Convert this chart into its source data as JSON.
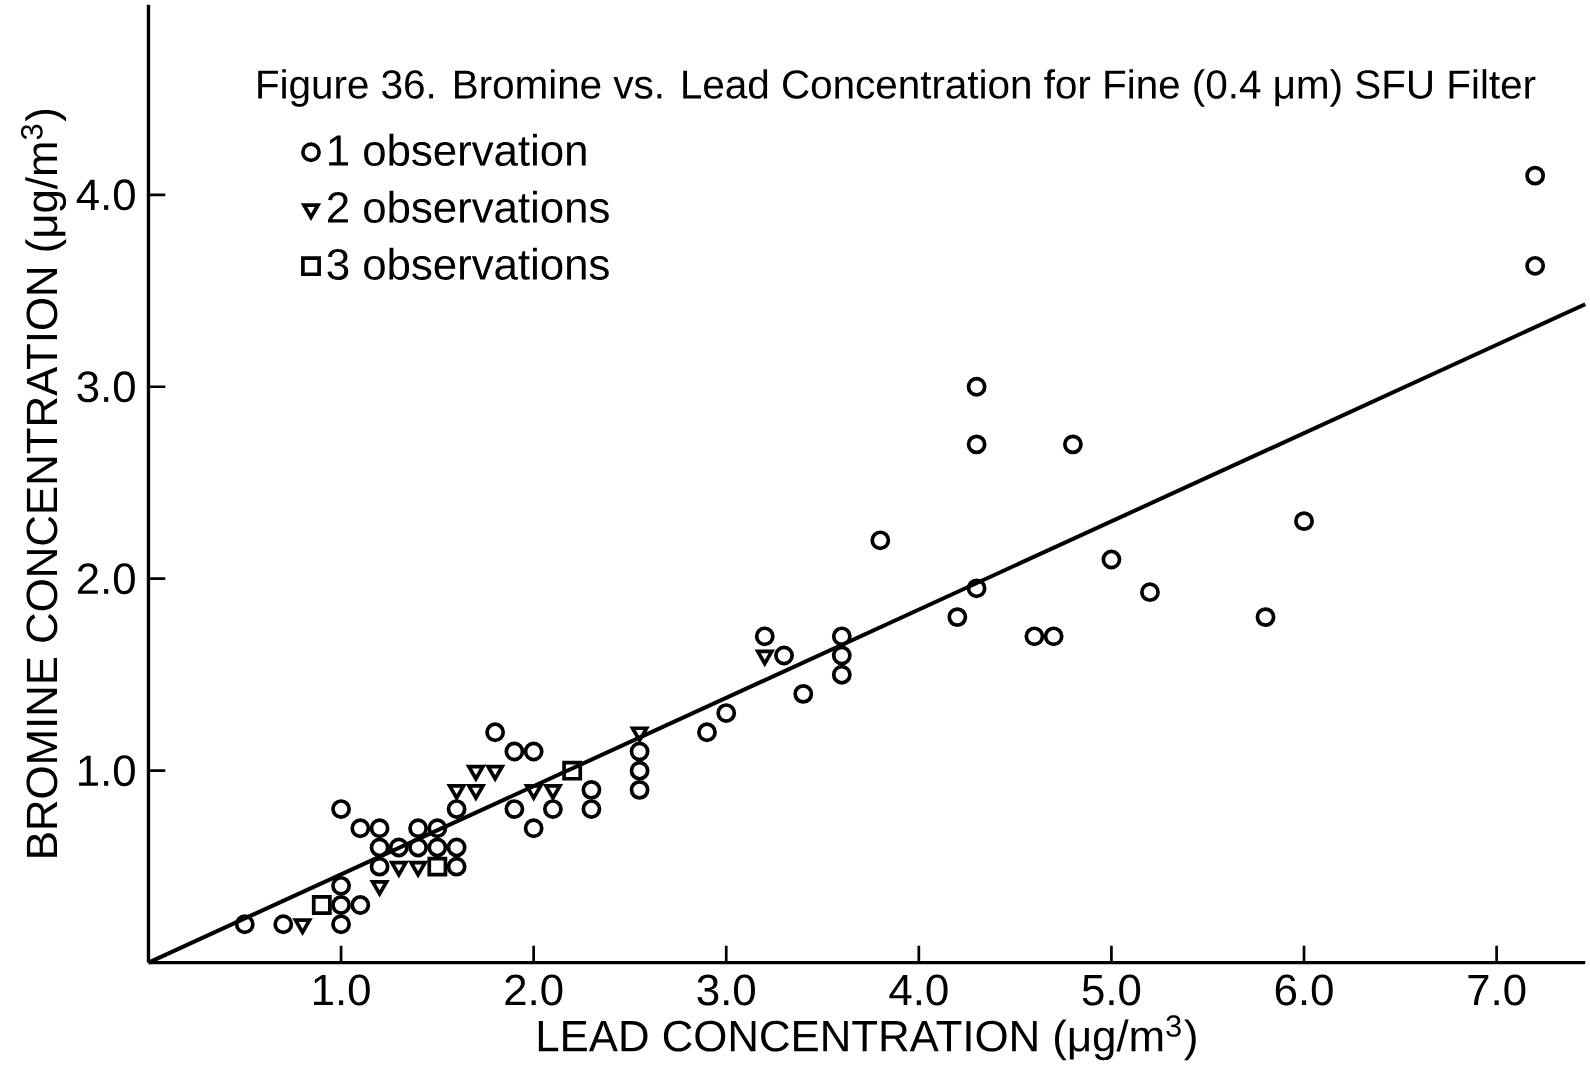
{
  "chart_data": {
    "type": "scatter",
    "title": "Figure 36. Bromine vs. Lead Concentration for Fine (0.4 μm) SFU Filter",
    "xlabel": "LEAD CONCENTRATION (μg/m$^{3}$)",
    "ylabel": "BROMINE CONCENTRATION (μg/m$^{3}$)",
    "xlim": [
      0,
      7.46
    ],
    "ylim": [
      0,
      4.99
    ],
    "xticks": [
      {
        "value": 1,
        "label": "1.0"
      },
      {
        "value": 2,
        "label": "2.0"
      },
      {
        "value": 3,
        "label": "3.0"
      },
      {
        "value": 4,
        "label": "4.0"
      },
      {
        "value": 5,
        "label": "5.0"
      },
      {
        "value": 6,
        "label": "6.0"
      },
      {
        "value": 7,
        "label": "7.0"
      }
    ],
    "yticks": [
      {
        "value": 1,
        "label": "1.0"
      },
      {
        "value": 2,
        "label": "2.0"
      },
      {
        "value": 3,
        "label": "3.0"
      },
      {
        "value": 4,
        "label": "4.0"
      }
    ],
    "grid": false,
    "legend": "top left",
    "series": [
      {
        "name": "1 observation",
        "color": "#000000",
        "marker": "circle",
        "x": [
          0.5,
          0.7,
          1.0,
          1.0,
          1.0,
          1.1,
          1.0,
          1.1,
          1.2,
          1.2,
          1.2,
          1.3,
          1.4,
          1.4,
          1.5,
          1.5,
          1.6,
          1.6,
          1.6,
          1.8,
          1.9,
          1.9,
          2.0,
          2.0,
          2.1,
          2.3,
          2.3,
          2.55,
          2.55,
          2.55,
          2.9,
          3.0,
          3.2,
          3.3,
          3.4,
          3.6,
          3.6,
          3.6,
          3.8,
          4.2,
          4.3,
          4.3,
          4.3,
          4.6,
          4.7,
          4.8,
          5.0,
          5.2,
          5.8,
          6.0,
          7.2,
          7.2
        ],
        "values": [
          0.2,
          0.2,
          0.2,
          0.3,
          0.4,
          0.3,
          0.8,
          0.7,
          0.7,
          0.6,
          0.5,
          0.6,
          0.7,
          0.6,
          0.7,
          0.6,
          0.6,
          0.5,
          0.8,
          1.2,
          1.1,
          0.8,
          1.1,
          0.7,
          0.8,
          0.9,
          0.8,
          1.1,
          1.0,
          0.9,
          1.2,
          1.3,
          1.7,
          1.6,
          1.4,
          1.7,
          1.6,
          1.5,
          2.2,
          1.8,
          3.0,
          2.7,
          1.95,
          1.7,
          1.7,
          2.7,
          2.1,
          1.93,
          1.8,
          2.3,
          4.1,
          3.63
        ]
      },
      {
        "name": "2 observations",
        "color": "#000000",
        "marker": "triangle",
        "x": [
          0.8,
          1.2,
          1.3,
          1.4,
          1.6,
          1.7,
          1.7,
          1.8,
          2.0,
          2.1,
          2.55,
          3.2
        ],
        "values": [
          0.2,
          0.4,
          0.5,
          0.5,
          0.9,
          0.9,
          1.0,
          1.0,
          0.9,
          0.9,
          1.2,
          1.6
        ]
      },
      {
        "name": "3 observations",
        "color": "#000000",
        "marker": "square",
        "x": [
          0.9,
          1.5,
          2.2
        ],
        "values": [
          0.3,
          0.5,
          1.0
        ]
      },
      {
        "type": "line",
        "color": "#000000",
        "marker": "none",
        "line_style": "solid",
        "x": [
          0,
          7.46
        ],
        "values": [
          0,
          3.43
        ]
      }
    ]
  }
}
